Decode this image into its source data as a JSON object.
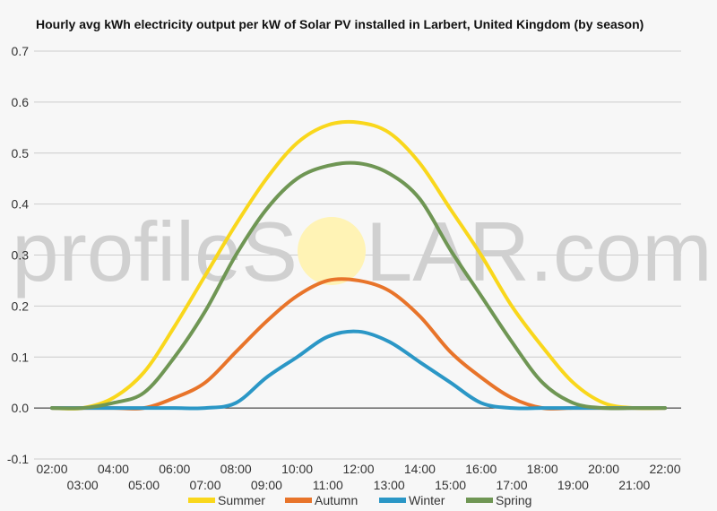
{
  "chart_data": {
    "type": "line",
    "title": "Hourly avg kWh electricity output per kW of Solar PV installed in Larbert, United Kingdom (by season)",
    "xlabel": "",
    "ylabel": "",
    "ylim": [
      -0.1,
      0.7
    ],
    "yticks": [
      "-0.1",
      "0.0",
      "0.1",
      "0.2",
      "0.3",
      "0.4",
      "0.5",
      "0.6",
      "0.7"
    ],
    "grid": true,
    "legend": "bottom",
    "categories": [
      "02:00",
      "03:00",
      "04:00",
      "05:00",
      "06:00",
      "07:00",
      "08:00",
      "09:00",
      "10:00",
      "11:00",
      "12:00",
      "13:00",
      "14:00",
      "15:00",
      "16:00",
      "17:00",
      "18:00",
      "19:00",
      "20:00",
      "21:00",
      "22:00"
    ],
    "series": [
      {
        "name": "Summer",
        "color": "#f9d71c",
        "values": [
          0,
          0,
          0.02,
          0.07,
          0.16,
          0.26,
          0.36,
          0.45,
          0.52,
          0.555,
          0.56,
          0.54,
          0.48,
          0.39,
          0.3,
          0.2,
          0.12,
          0.05,
          0.01,
          0,
          0
        ]
      },
      {
        "name": "Autumn",
        "color": "#e8742a",
        "values": [
          0,
          0,
          0,
          0,
          0.02,
          0.05,
          0.11,
          0.17,
          0.22,
          0.25,
          0.25,
          0.23,
          0.18,
          0.11,
          0.06,
          0.02,
          0,
          0,
          0,
          0,
          0
        ]
      },
      {
        "name": "Winter",
        "color": "#2b97c6",
        "values": [
          0,
          0,
          0,
          0,
          0,
          0,
          0.01,
          0.06,
          0.1,
          0.14,
          0.15,
          0.13,
          0.09,
          0.05,
          0.01,
          0,
          0,
          0,
          0,
          0,
          0
        ]
      },
      {
        "name": "Spring",
        "color": "#6f9654",
        "values": [
          0,
          0,
          0.01,
          0.03,
          0.1,
          0.19,
          0.3,
          0.39,
          0.45,
          0.475,
          0.48,
          0.46,
          0.41,
          0.31,
          0.22,
          0.13,
          0.05,
          0.01,
          0,
          0,
          0
        ]
      }
    ]
  },
  "watermark": {
    "text_left": "profileS",
    "text_right": "LAR.com",
    "sun_color": "#fff3b5"
  }
}
